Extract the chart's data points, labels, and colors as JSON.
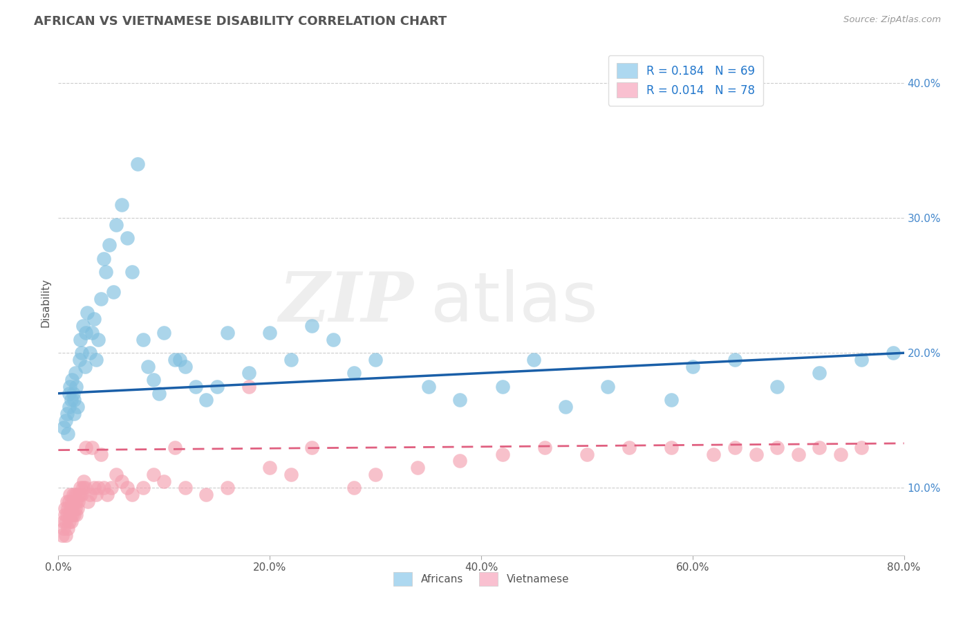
{
  "title": "AFRICAN VS VIETNAMESE DISABILITY CORRELATION CHART",
  "source": "Source: ZipAtlas.com",
  "ylabel": "Disability",
  "xlim": [
    0.0,
    0.8
  ],
  "ylim": [
    0.05,
    0.425
  ],
  "yticks": [
    0.1,
    0.2,
    0.3,
    0.4
  ],
  "ytick_labels": [
    "10.0%",
    "20.0%",
    "30.0%",
    "40.0%"
  ],
  "xticks": [
    0.0,
    0.2,
    0.4,
    0.6,
    0.8
  ],
  "xtick_labels": [
    "0.0%",
    "20.0%",
    "40.0%",
    "60.0%",
    "80.0%"
  ],
  "africans_R": 0.184,
  "africans_N": 69,
  "vietnamese_R": 0.014,
  "vietnamese_N": 78,
  "africans_color": "#7fbfdf",
  "vietnamese_color": "#f4a0b0",
  "africans_line_color": "#1a5fa8",
  "vietnamese_line_color": "#e06080",
  "legend_box_africans": "#add8f0",
  "legend_box_vietnamese": "#f9c0d0",
  "background_color": "#ffffff",
  "af_x": [
    0.005,
    0.007,
    0.008,
    0.009,
    0.01,
    0.01,
    0.011,
    0.012,
    0.013,
    0.014,
    0.015,
    0.015,
    0.016,
    0.017,
    0.018,
    0.02,
    0.021,
    0.022,
    0.023,
    0.025,
    0.026,
    0.027,
    0.03,
    0.032,
    0.034,
    0.036,
    0.038,
    0.04,
    0.043,
    0.045,
    0.048,
    0.052,
    0.055,
    0.06,
    0.065,
    0.07,
    0.075,
    0.08,
    0.085,
    0.09,
    0.095,
    0.1,
    0.11,
    0.115,
    0.12,
    0.13,
    0.14,
    0.15,
    0.16,
    0.18,
    0.2,
    0.22,
    0.24,
    0.26,
    0.28,
    0.3,
    0.35,
    0.38,
    0.42,
    0.45,
    0.48,
    0.52,
    0.58,
    0.6,
    0.64,
    0.68,
    0.72,
    0.76,
    0.79
  ],
  "af_y": [
    0.145,
    0.15,
    0.155,
    0.14,
    0.16,
    0.17,
    0.175,
    0.165,
    0.18,
    0.17,
    0.155,
    0.165,
    0.185,
    0.175,
    0.16,
    0.195,
    0.21,
    0.2,
    0.22,
    0.19,
    0.215,
    0.23,
    0.2,
    0.215,
    0.225,
    0.195,
    0.21,
    0.24,
    0.27,
    0.26,
    0.28,
    0.245,
    0.295,
    0.31,
    0.285,
    0.26,
    0.34,
    0.21,
    0.19,
    0.18,
    0.17,
    0.215,
    0.195,
    0.195,
    0.19,
    0.175,
    0.165,
    0.175,
    0.215,
    0.185,
    0.215,
    0.195,
    0.22,
    0.21,
    0.185,
    0.195,
    0.175,
    0.165,
    0.175,
    0.195,
    0.16,
    0.175,
    0.165,
    0.19,
    0.195,
    0.175,
    0.185,
    0.195,
    0.2
  ],
  "vi_x": [
    0.004,
    0.005,
    0.005,
    0.006,
    0.006,
    0.007,
    0.007,
    0.008,
    0.008,
    0.009,
    0.009,
    0.01,
    0.01,
    0.011,
    0.011,
    0.012,
    0.012,
    0.013,
    0.013,
    0.014,
    0.015,
    0.015,
    0.016,
    0.016,
    0.017,
    0.017,
    0.018,
    0.018,
    0.019,
    0.02,
    0.021,
    0.022,
    0.023,
    0.024,
    0.025,
    0.026,
    0.028,
    0.03,
    0.032,
    0.034,
    0.036,
    0.038,
    0.04,
    0.043,
    0.046,
    0.05,
    0.055,
    0.06,
    0.065,
    0.07,
    0.08,
    0.09,
    0.1,
    0.11,
    0.12,
    0.14,
    0.16,
    0.18,
    0.2,
    0.22,
    0.24,
    0.28,
    0.3,
    0.34,
    0.38,
    0.42,
    0.46,
    0.5,
    0.54,
    0.58,
    0.62,
    0.64,
    0.66,
    0.68,
    0.7,
    0.72,
    0.74,
    0.76
  ],
  "vi_y": [
    0.065,
    0.07,
    0.075,
    0.08,
    0.085,
    0.065,
    0.075,
    0.08,
    0.09,
    0.07,
    0.085,
    0.075,
    0.09,
    0.08,
    0.095,
    0.075,
    0.085,
    0.08,
    0.09,
    0.095,
    0.08,
    0.09,
    0.085,
    0.095,
    0.08,
    0.09,
    0.085,
    0.095,
    0.09,
    0.095,
    0.1,
    0.095,
    0.1,
    0.105,
    0.1,
    0.13,
    0.09,
    0.095,
    0.13,
    0.1,
    0.095,
    0.1,
    0.125,
    0.1,
    0.095,
    0.1,
    0.11,
    0.105,
    0.1,
    0.095,
    0.1,
    0.11,
    0.105,
    0.13,
    0.1,
    0.095,
    0.1,
    0.175,
    0.115,
    0.11,
    0.13,
    0.1,
    0.11,
    0.115,
    0.12,
    0.125,
    0.13,
    0.125,
    0.13,
    0.13,
    0.125,
    0.13,
    0.125,
    0.13,
    0.125,
    0.13,
    0.125,
    0.13
  ]
}
